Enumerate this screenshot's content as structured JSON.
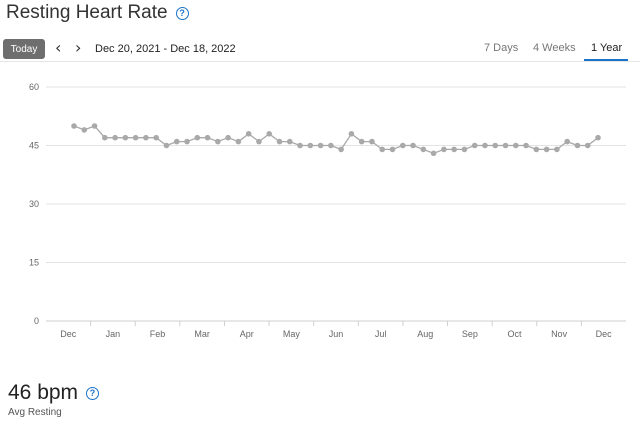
{
  "header": {
    "title": "Resting Heart Rate",
    "help_icon": "help-circle-icon"
  },
  "toolbar": {
    "today_label": "Today",
    "prev_icon": "chevron-left-icon",
    "next_icon": "chevron-right-icon",
    "date_range": "Dec 20, 2021 - Dec 18, 2022",
    "tabs": [
      {
        "label": "7 Days",
        "active": false
      },
      {
        "label": "4 Weeks",
        "active": false
      },
      {
        "label": "1 Year",
        "active": true
      }
    ],
    "accent_color": "#1a73c7"
  },
  "chart_data": {
    "type": "line",
    "title": "",
    "xlabel": "",
    "ylabel": "",
    "ylim": [
      0,
      60
    ],
    "yticks": [
      0,
      15,
      30,
      45,
      60
    ],
    "x_tick_labels": [
      "Dec",
      "Jan",
      "Feb",
      "Mar",
      "Apr",
      "May",
      "Jun",
      "Jul",
      "Aug",
      "Sep",
      "Oct",
      "Nov",
      "Dec"
    ],
    "grid": true,
    "line_color": "#a9a9a9",
    "series": [
      {
        "name": "",
        "x": [
          "2021-12-20",
          "2021-12-27",
          "2022-01-03",
          "2022-01-10",
          "2022-01-17",
          "2022-01-24",
          "2022-01-31",
          "2022-02-07",
          "2022-02-14",
          "2022-02-21",
          "2022-02-28",
          "2022-03-07",
          "2022-03-14",
          "2022-03-21",
          "2022-03-28",
          "2022-04-04",
          "2022-04-11",
          "2022-04-18",
          "2022-04-25",
          "2022-05-02",
          "2022-05-09",
          "2022-05-16",
          "2022-05-23",
          "2022-05-30",
          "2022-06-06",
          "2022-06-13",
          "2022-06-20",
          "2022-06-27",
          "2022-07-04",
          "2022-07-11",
          "2022-07-18",
          "2022-07-25",
          "2022-08-01",
          "2022-08-08",
          "2022-08-15",
          "2022-08-22",
          "2022-08-29",
          "2022-09-05",
          "2022-09-12",
          "2022-09-19",
          "2022-09-26",
          "2022-10-03",
          "2022-10-10",
          "2022-10-17",
          "2022-10-24",
          "2022-10-31",
          "2022-11-07",
          "2022-11-14",
          "2022-11-21",
          "2022-11-28",
          "2022-12-05",
          "2022-12-12"
        ],
        "values": [
          50,
          49,
          50,
          47,
          47,
          47,
          47,
          47,
          47,
          45,
          46,
          46,
          47,
          47,
          46,
          47,
          46,
          48,
          46,
          48,
          46,
          46,
          45,
          45,
          45,
          45,
          44,
          48,
          46,
          46,
          44,
          44,
          45,
          45,
          44,
          43,
          44,
          44,
          44,
          45,
          45,
          45,
          45,
          45,
          45,
          44,
          44,
          44,
          46,
          45,
          45,
          47
        ]
      }
    ]
  },
  "summary": {
    "value": "46 bpm",
    "label": "Avg Resting",
    "help_icon": "help-circle-icon"
  }
}
